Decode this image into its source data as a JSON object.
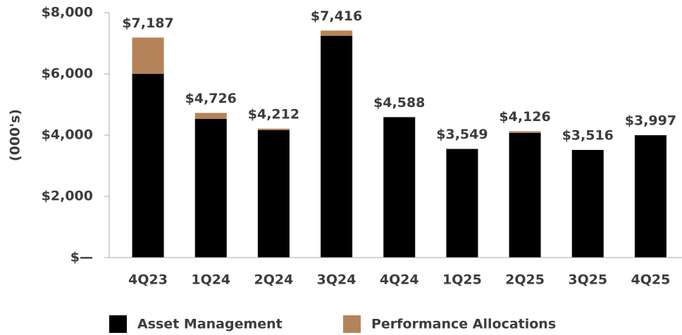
{
  "chart_data": {
    "type": "stacked_bar",
    "y_label": "(000's)",
    "categories": [
      "4Q23",
      "1Q24",
      "2Q24",
      "3Q24",
      "4Q24",
      "1Q25",
      "2Q25",
      "3Q25",
      "4Q25"
    ],
    "series": [
      {
        "name": "Asset Management",
        "color": "#000000",
        "values": [
          6000,
          4530,
          4161,
          7241,
          4588,
          3549,
          4069,
          3516,
          3997
        ]
      },
      {
        "name": "Performance Allocations",
        "color": "#b5835a",
        "values": [
          1187,
          196,
          51,
          175,
          0,
          0,
          57,
          0,
          0
        ]
      }
    ],
    "total_labels": [
      "$7,187",
      "$4,726",
      "$4,212",
      "$7,416",
      "$4,588",
      "$3,549",
      "$4,126",
      "$3,516",
      "$3,997"
    ],
    "ylim": [
      0,
      8000
    ],
    "yticks": [
      {
        "value": 0,
        "label": "$—"
      },
      {
        "value": 2000,
        "label": "$2,000"
      },
      {
        "value": 4000,
        "label": "$4,000"
      },
      {
        "value": 6000,
        "label": "$6,000"
      },
      {
        "value": 8000,
        "label": "$8,000"
      }
    ]
  }
}
